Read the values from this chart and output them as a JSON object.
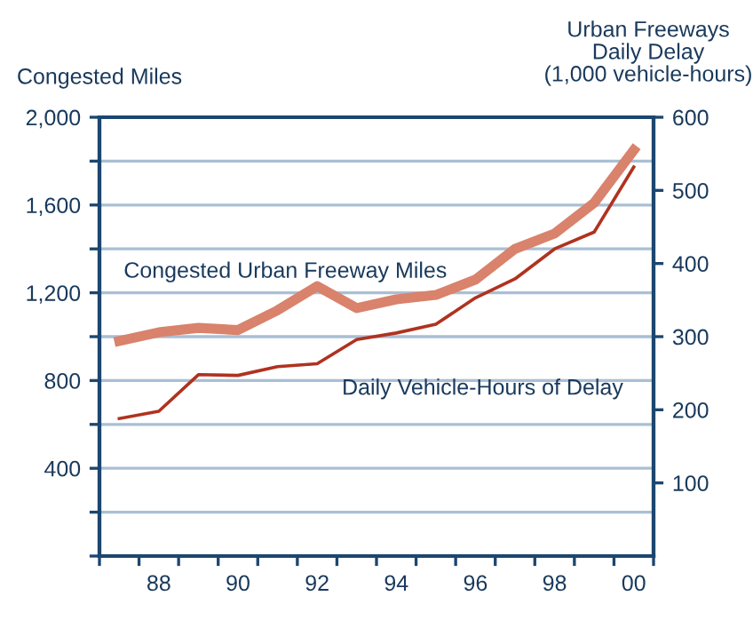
{
  "chart_data": {
    "type": "line",
    "ylabel": "Congested Miles",
    "y2label": "Urban Freeways\nDaily Delay\n(1,000 vehicle-hours)",
    "x": [
      1987,
      1988,
      1989,
      1990,
      1991,
      1992,
      1993,
      1994,
      1995,
      1996,
      1997,
      1998,
      1999,
      2000
    ],
    "xlim": [
      1986.5,
      2000.5
    ],
    "xticks": [
      {
        "value": 1986.5,
        "label": null
      },
      {
        "value": 1987.5,
        "label": null
      },
      {
        "value": 1988,
        "label": "88"
      },
      {
        "value": 1988.5,
        "label": null
      },
      {
        "value": 1989.5,
        "label": null
      },
      {
        "value": 1990,
        "label": "90"
      },
      {
        "value": 1990.5,
        "label": null
      },
      {
        "value": 1991.5,
        "label": null
      },
      {
        "value": 1992,
        "label": "92"
      },
      {
        "value": 1992.5,
        "label": null
      },
      {
        "value": 1993.5,
        "label": null
      },
      {
        "value": 1994,
        "label": "94"
      },
      {
        "value": 1994.5,
        "label": null
      },
      {
        "value": 1995.5,
        "label": null
      },
      {
        "value": 1996,
        "label": "96"
      },
      {
        "value": 1996.5,
        "label": null
      },
      {
        "value": 1997.5,
        "label": null
      },
      {
        "value": 1998,
        "label": "98"
      },
      {
        "value": 1998.5,
        "label": null
      },
      {
        "value": 1999.5,
        "label": null
      },
      {
        "value": 2000,
        "label": "00"
      },
      {
        "value": 2000.5,
        "label": null
      }
    ],
    "ylim": [
      0,
      2000
    ],
    "yticks": [
      {
        "value": 0,
        "label": null
      },
      {
        "value": 200,
        "label": null
      },
      {
        "value": 400,
        "label": "400"
      },
      {
        "value": 600,
        "label": null
      },
      {
        "value": 800,
        "label": "800"
      },
      {
        "value": 1000,
        "label": null
      },
      {
        "value": 1200,
        "label": "1,200"
      },
      {
        "value": 1400,
        "label": null
      },
      {
        "value": 1600,
        "label": "1,600"
      },
      {
        "value": 1800,
        "label": null
      },
      {
        "value": 2000,
        "label": "2,000"
      }
    ],
    "y2lim": [
      0,
      600
    ],
    "y2ticks": [
      100,
      200,
      300,
      400,
      500,
      600
    ],
    "grid": "y",
    "legend": false,
    "marker": "none",
    "line_style": "solid",
    "series": [
      {
        "name": "Congested Urban Freeway Miles",
        "color": "#d9826c",
        "values": [
          980,
          1020,
          1040,
          1030,
          1120,
          1230,
          1130,
          1170,
          1190,
          1260,
          1400,
          1470,
          1610,
          1850
        ]
      },
      {
        "name": "Daily Vehicle-Hours of Delay",
        "color": "#b0321f",
        "axis": "y2",
        "values": [
          188,
          198,
          248,
          247,
          259,
          263,
          296,
          305,
          317,
          353,
          379,
          420,
          443,
          532
        ]
      }
    ]
  }
}
